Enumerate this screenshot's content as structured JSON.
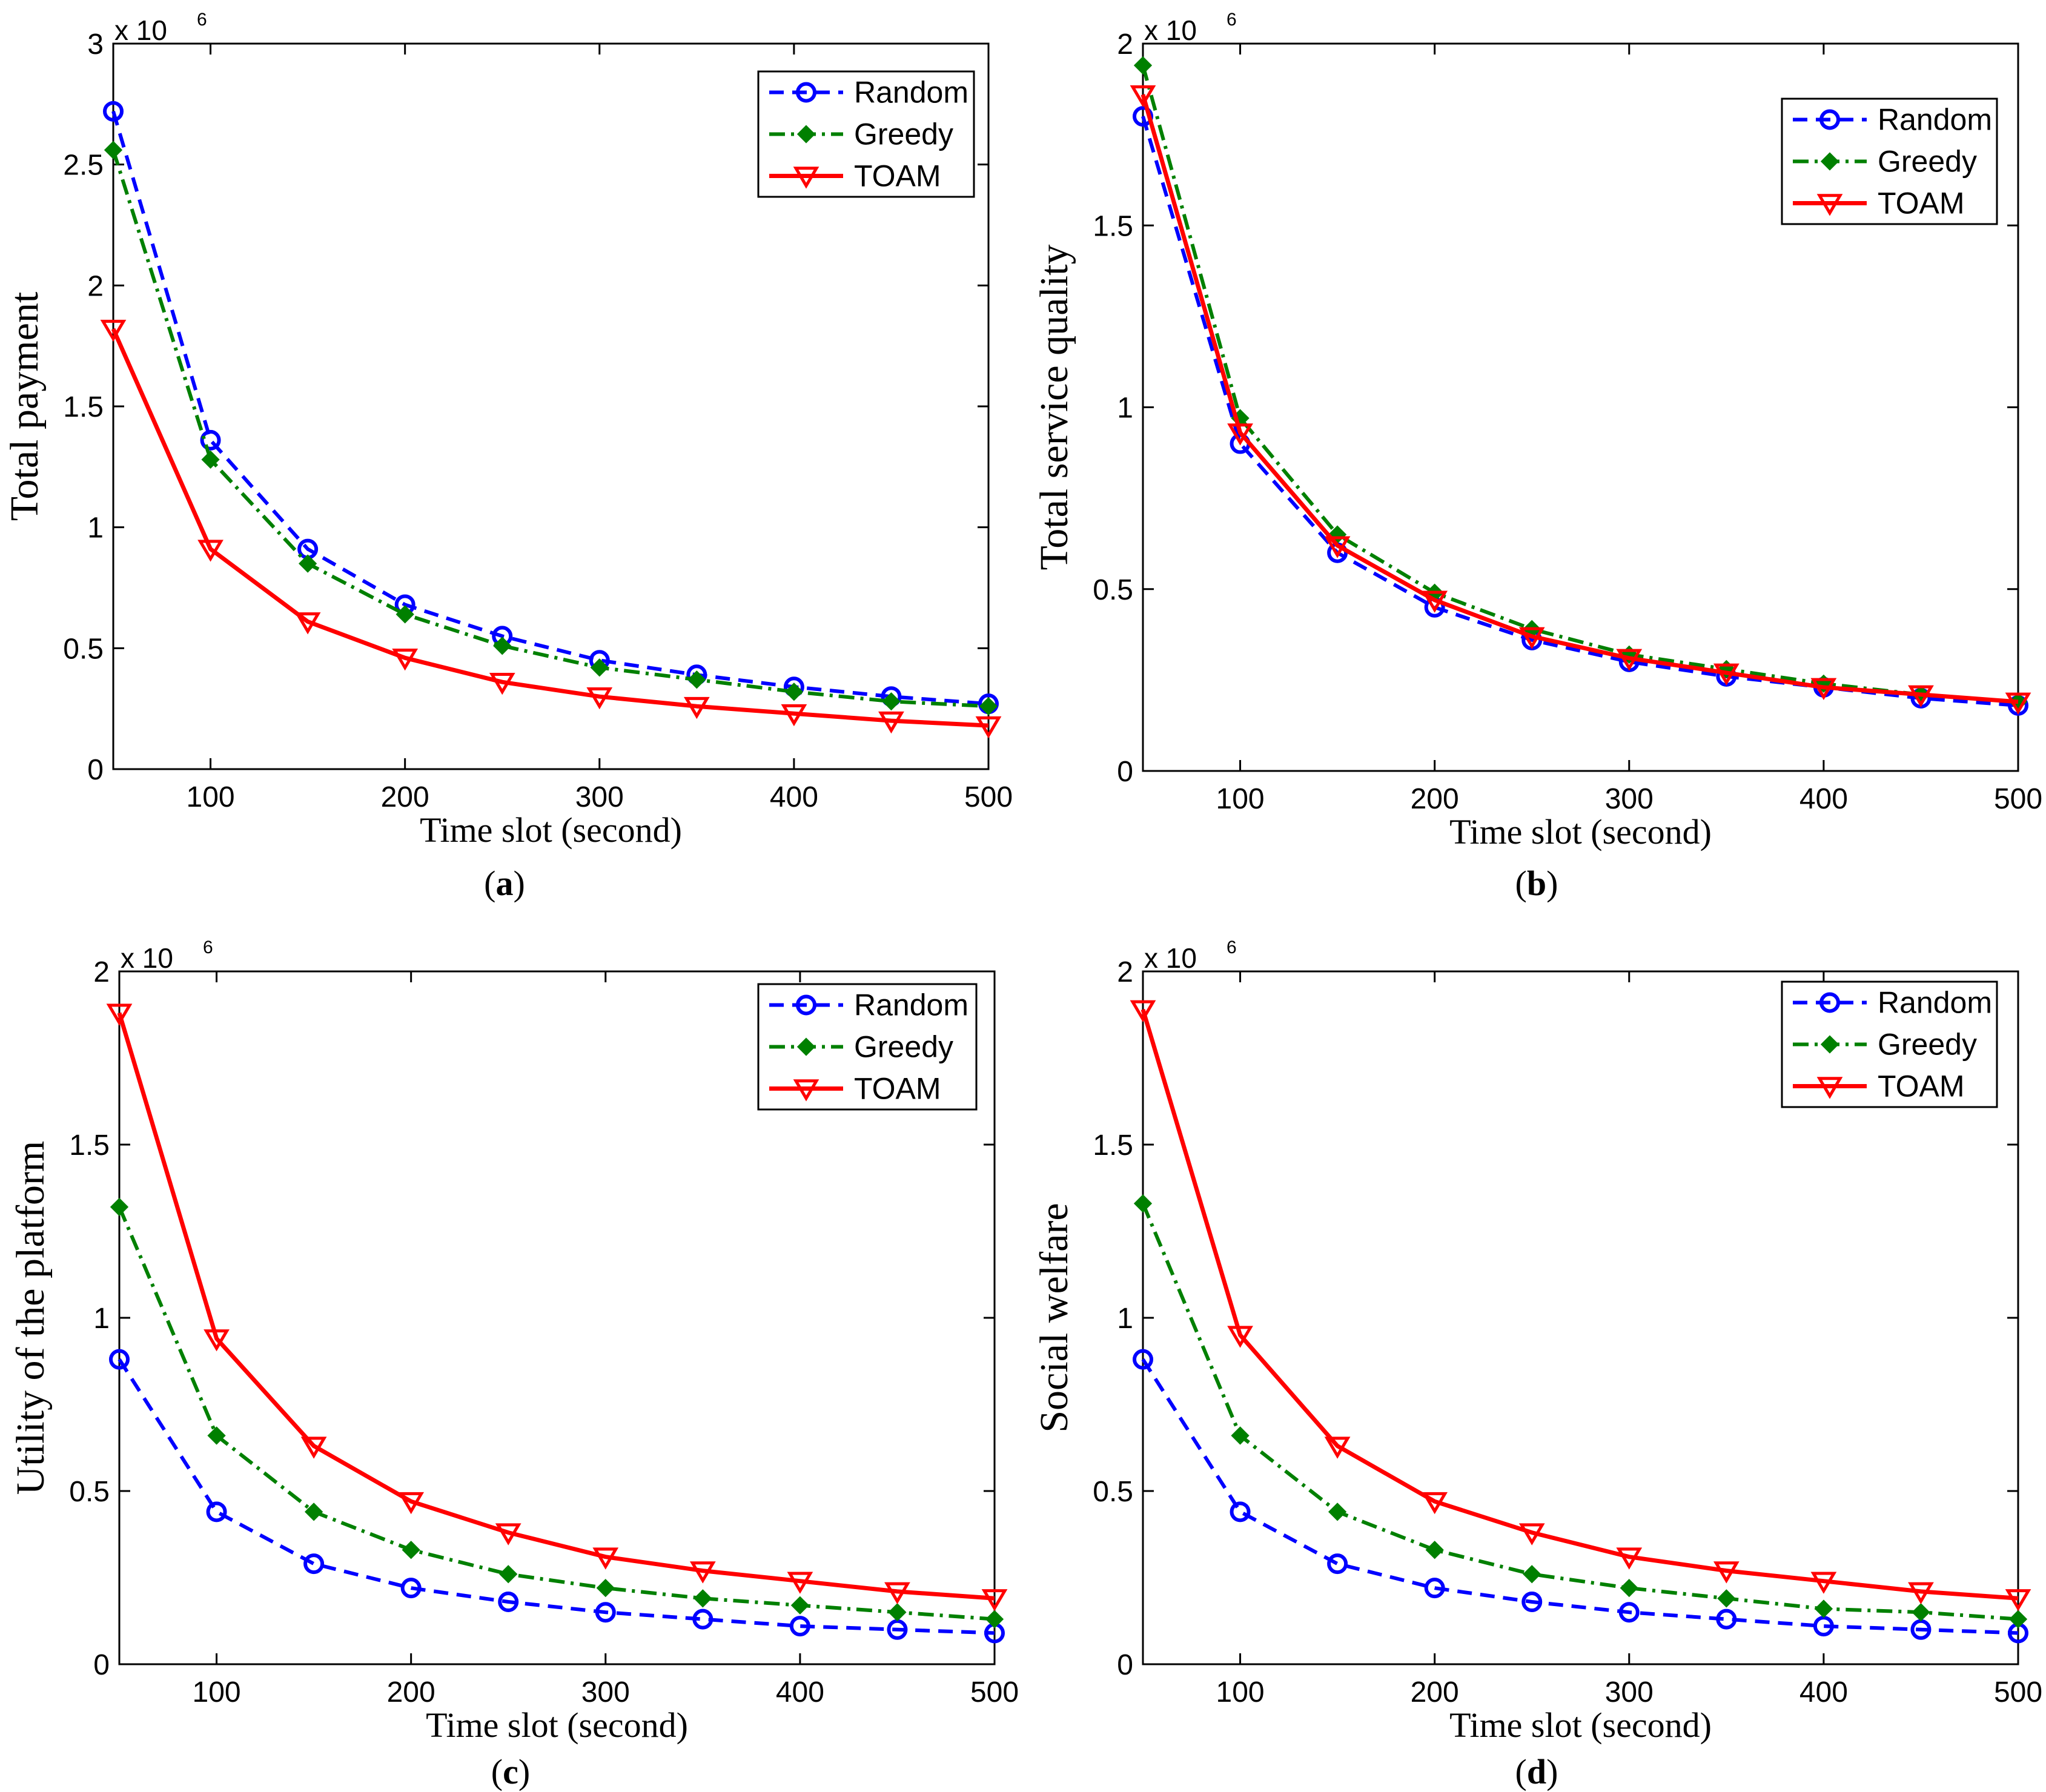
{
  "figure": {
    "colors": {
      "Random": "#0000ff",
      "Greedy": "#008000",
      "TOAM": "#ff0000"
    }
  },
  "chart_data": [
    {
      "type": "line",
      "panel_label": "(a)",
      "panel_letter": "a",
      "xlabel": "Time slot (second)",
      "ylabel": "Total payment",
      "exponent_label": "x 10",
      "exponent_power": "6",
      "xlim": [
        50,
        500
      ],
      "ylim": [
        0,
        3
      ],
      "xticks": [
        100,
        200,
        300,
        400,
        500
      ],
      "yticks": [
        0,
        0.5,
        1,
        1.5,
        2,
        2.5,
        3
      ],
      "ytick_labels": [
        "0",
        "0.5",
        "1",
        "1.5",
        "2",
        "2.5",
        "3"
      ],
      "legend_position": "top-right",
      "x": [
        50,
        100,
        150,
        200,
        250,
        300,
        350,
        400,
        450,
        500
      ],
      "series": [
        {
          "name": "Random",
          "values": [
            2.72,
            1.36,
            0.91,
            0.68,
            0.55,
            0.45,
            0.39,
            0.34,
            0.3,
            0.27
          ]
        },
        {
          "name": "Greedy",
          "values": [
            2.56,
            1.28,
            0.85,
            0.64,
            0.51,
            0.42,
            0.37,
            0.32,
            0.28,
            0.26
          ]
        },
        {
          "name": "TOAM",
          "values": [
            1.82,
            0.91,
            0.61,
            0.46,
            0.36,
            0.3,
            0.26,
            0.23,
            0.2,
            0.18
          ]
        }
      ]
    },
    {
      "type": "line",
      "panel_label": "(b)",
      "panel_letter": "b",
      "xlabel": "Time slot (second)",
      "ylabel": "Total service quality",
      "exponent_label": "x 10",
      "exponent_power": "6",
      "xlim": [
        50,
        500
      ],
      "ylim": [
        0,
        2
      ],
      "xticks": [
        100,
        200,
        300,
        400,
        500
      ],
      "yticks": [
        0,
        0.5,
        1,
        1.5,
        2
      ],
      "ytick_labels": [
        "0",
        "0.5",
        "1",
        "1.5",
        "2"
      ],
      "legend_position": "top-right",
      "x": [
        50,
        100,
        150,
        200,
        250,
        300,
        350,
        400,
        450,
        500
      ],
      "series": [
        {
          "name": "Random",
          "values": [
            1.8,
            0.9,
            0.6,
            0.45,
            0.36,
            0.3,
            0.26,
            0.23,
            0.2,
            0.18
          ]
        },
        {
          "name": "Greedy",
          "values": [
            1.94,
            0.97,
            0.65,
            0.49,
            0.39,
            0.32,
            0.28,
            0.24,
            0.21,
            0.19
          ]
        },
        {
          "name": "TOAM",
          "values": [
            1.86,
            0.93,
            0.62,
            0.47,
            0.37,
            0.31,
            0.27,
            0.23,
            0.21,
            0.19
          ]
        }
      ]
    },
    {
      "type": "line",
      "panel_label": "(c)",
      "panel_letter": "c",
      "xlabel": "Time slot (second)",
      "ylabel": "Utility of the platform",
      "exponent_label": "x 10",
      "exponent_power": "6",
      "xlim": [
        50,
        500
      ],
      "ylim": [
        0,
        2
      ],
      "xticks": [
        100,
        200,
        300,
        400,
        500
      ],
      "yticks": [
        0,
        0.5,
        1,
        1.5,
        2
      ],
      "ytick_labels": [
        "0",
        "0.5",
        "1",
        "1.5",
        "2"
      ],
      "legend_position": "top-right",
      "x": [
        50,
        100,
        150,
        200,
        250,
        300,
        350,
        400,
        450,
        500
      ],
      "series": [
        {
          "name": "Random",
          "values": [
            0.88,
            0.44,
            0.29,
            0.22,
            0.18,
            0.15,
            0.13,
            0.11,
            0.1,
            0.09
          ]
        },
        {
          "name": "Greedy",
          "values": [
            1.32,
            0.66,
            0.44,
            0.33,
            0.26,
            0.22,
            0.19,
            0.17,
            0.15,
            0.13
          ]
        },
        {
          "name": "TOAM",
          "values": [
            1.88,
            0.94,
            0.63,
            0.47,
            0.38,
            0.31,
            0.27,
            0.24,
            0.21,
            0.19
          ]
        }
      ]
    },
    {
      "type": "line",
      "panel_label": "(d)",
      "panel_letter": "d",
      "xlabel": "Time slot (second)",
      "ylabel": "Social welfare",
      "exponent_label": "x 10",
      "exponent_power": "6",
      "xlim": [
        50,
        500
      ],
      "ylim": [
        0,
        2
      ],
      "xticks": [
        100,
        200,
        300,
        400,
        500
      ],
      "yticks": [
        0,
        0.5,
        1,
        1.5,
        2
      ],
      "ytick_labels": [
        "0",
        "0.5",
        "1",
        "1.5",
        "2"
      ],
      "legend_position": "top-right",
      "x": [
        50,
        100,
        150,
        200,
        250,
        300,
        350,
        400,
        450,
        500
      ],
      "series": [
        {
          "name": "Random",
          "values": [
            0.88,
            0.44,
            0.29,
            0.22,
            0.18,
            0.15,
            0.13,
            0.11,
            0.1,
            0.09
          ]
        },
        {
          "name": "Greedy",
          "values": [
            1.33,
            0.66,
            0.44,
            0.33,
            0.26,
            0.22,
            0.19,
            0.16,
            0.15,
            0.13
          ]
        },
        {
          "name": "TOAM",
          "values": [
            1.89,
            0.95,
            0.63,
            0.47,
            0.38,
            0.31,
            0.27,
            0.24,
            0.21,
            0.19
          ]
        }
      ]
    }
  ]
}
